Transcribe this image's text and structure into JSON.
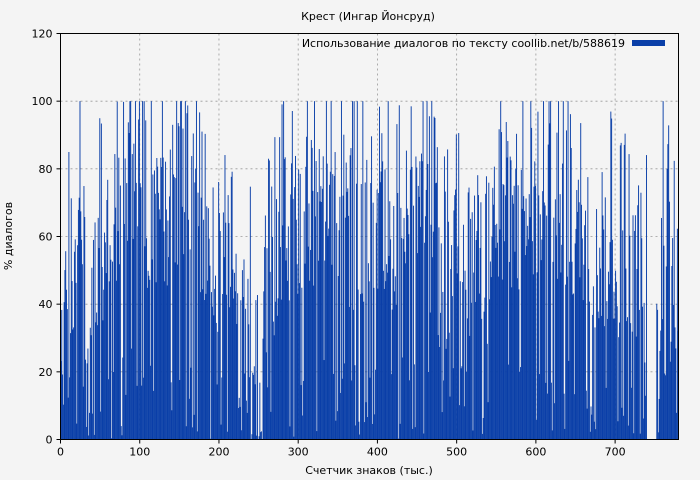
{
  "chart_data": {
    "type": "bar",
    "title": "Крест (Ингар Йонсруд)",
    "xlabel": "Счетчик знаков (тыс.)",
    "ylabel": "% диалогов",
    "xlim": [
      0,
      780
    ],
    "ylim": [
      0,
      120
    ],
    "x_ticks": [
      0,
      100,
      200,
      300,
      400,
      500,
      600,
      700
    ],
    "y_ticks": [
      0,
      20,
      40,
      60,
      80,
      100,
      120
    ],
    "grid": true,
    "legend_position": "top-right",
    "series": [
      {
        "name": "Использование диалогов по тексту coollib.net/b/588619",
        "color": "#0a3fa8",
        "bin_width": 1,
        "x_start": 0,
        "segments": [
          {
            "from": 0,
            "to": 10,
            "level": 35
          },
          {
            "from": 10,
            "to": 20,
            "level": 50
          },
          {
            "from": 20,
            "to": 33,
            "level": 60
          },
          {
            "from": 33,
            "to": 45,
            "level": 22
          },
          {
            "from": 45,
            "to": 60,
            "level": 45
          },
          {
            "from": 60,
            "to": 75,
            "level": 62
          },
          {
            "from": 75,
            "to": 100,
            "level": 75
          },
          {
            "from": 100,
            "to": 135,
            "level": 62
          },
          {
            "from": 135,
            "to": 160,
            "level": 70
          },
          {
            "from": 160,
            "to": 180,
            "level": 58
          },
          {
            "from": 180,
            "to": 200,
            "level": 48
          },
          {
            "from": 200,
            "to": 222,
            "level": 55
          },
          {
            "from": 222,
            "to": 240,
            "level": 25
          },
          {
            "from": 240,
            "to": 255,
            "level": 5
          },
          {
            "from": 255,
            "to": 275,
            "level": 45
          },
          {
            "from": 275,
            "to": 300,
            "level": 58
          },
          {
            "from": 300,
            "to": 320,
            "level": 62
          },
          {
            "from": 320,
            "to": 345,
            "level": 68
          },
          {
            "from": 345,
            "to": 360,
            "level": 60
          },
          {
            "from": 360,
            "to": 385,
            "level": 58
          },
          {
            "from": 385,
            "to": 410,
            "level": 55
          },
          {
            "from": 410,
            "to": 430,
            "level": 58
          },
          {
            "from": 430,
            "to": 460,
            "level": 65
          },
          {
            "from": 460,
            "to": 475,
            "level": 55
          },
          {
            "from": 475,
            "to": 495,
            "level": 45
          },
          {
            "from": 495,
            "to": 515,
            "level": 55
          },
          {
            "from": 515,
            "to": 540,
            "level": 48
          },
          {
            "from": 540,
            "to": 560,
            "level": 58
          },
          {
            "from": 560,
            "to": 590,
            "level": 62
          },
          {
            "from": 590,
            "to": 615,
            "level": 60
          },
          {
            "from": 615,
            "to": 640,
            "level": 62
          },
          {
            "from": 640,
            "to": 670,
            "level": 60
          },
          {
            "from": 670,
            "to": 700,
            "level": 52
          },
          {
            "from": 700,
            "to": 720,
            "level": 48
          },
          {
            "from": 720,
            "to": 740,
            "level": 35
          },
          {
            "from": 740,
            "to": 752,
            "level": 0
          },
          {
            "from": 752,
            "to": 760,
            "level": 18
          },
          {
            "from": 760,
            "to": 770,
            "level": 70
          },
          {
            "from": 770,
            "to": 780,
            "level": 40
          }
        ]
      }
    ]
  }
}
